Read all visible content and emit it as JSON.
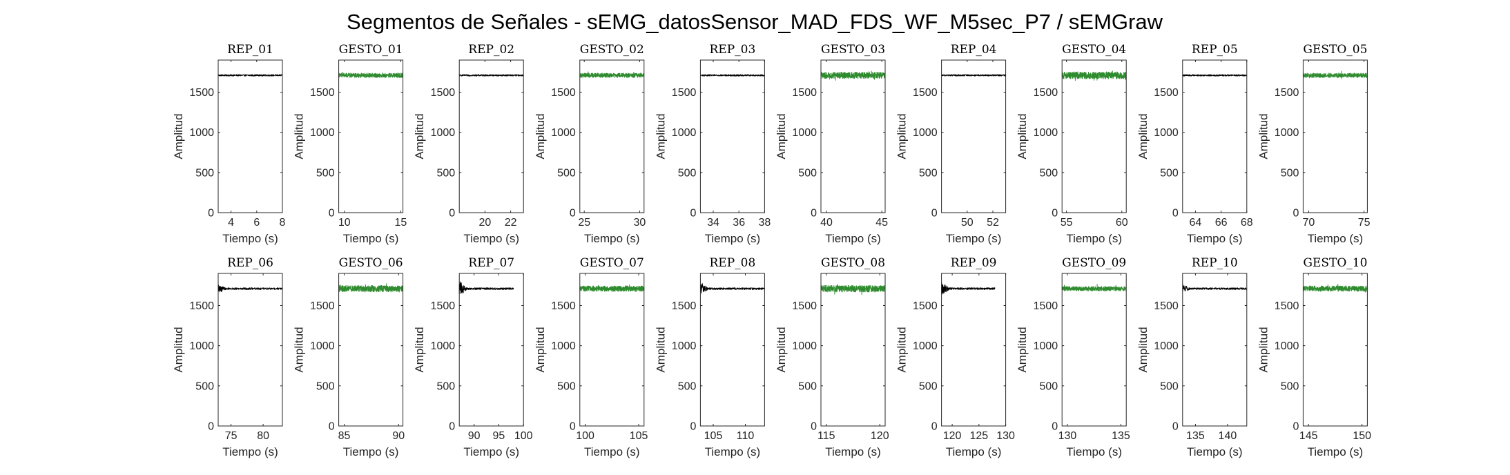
{
  "figure": {
    "title": "Segmentos de Señales - sEMG_datosSensor_MAD_FDS_WF_M5sec_P7 / sEMGraw",
    "colors": {
      "rep": "#000000",
      "gesto": "#2e8b2e",
      "axis": "#262626"
    }
  },
  "chart_data": [
    {
      "type": "line",
      "title": "REP_01",
      "xlabel": "Tiempo (s)",
      "ylabel": "Amplitud",
      "xlim": [
        3,
        8
      ],
      "ylim": [
        0,
        1900
      ],
      "xticks": [
        4,
        6,
        8
      ],
      "yticks": [
        0,
        500,
        1000,
        1500
      ],
      "series": [
        {
          "kind": "rep",
          "x_range": [
            3,
            8
          ],
          "level": 1710,
          "noise": 10,
          "burst_amp": 0,
          "burst_dur": 0
        }
      ]
    },
    {
      "type": "line",
      "title": "GESTO_01",
      "xlabel": "Tiempo (s)",
      "ylabel": "Amplitud",
      "xlim": [
        9.5,
        15.2
      ],
      "ylim": [
        0,
        1900
      ],
      "xticks": [
        10,
        15
      ],
      "yticks": [
        0,
        500,
        1000,
        1500
      ],
      "series": [
        {
          "kind": "gesto",
          "x_range": [
            9.5,
            15.2
          ],
          "level": 1710,
          "noise": 28,
          "burst_amp": 0,
          "burst_dur": 0
        }
      ]
    },
    {
      "type": "line",
      "title": "REP_02",
      "xlabel": "Tiempo (s)",
      "ylabel": "Amplitud",
      "xlim": [
        18,
        23
      ],
      "ylim": [
        0,
        1900
      ],
      "xticks": [
        20,
        22
      ],
      "yticks": [
        0,
        500,
        1000,
        1500
      ],
      "series": [
        {
          "kind": "rep",
          "x_range": [
            18,
            23
          ],
          "level": 1710,
          "noise": 10,
          "burst_amp": 0,
          "burst_dur": 0
        }
      ]
    },
    {
      "type": "line",
      "title": "GESTO_02",
      "xlabel": "Tiempo (s)",
      "ylabel": "Amplitud",
      "xlim": [
        24.6,
        30.4
      ],
      "ylim": [
        0,
        1900
      ],
      "xticks": [
        25,
        30
      ],
      "yticks": [
        0,
        500,
        1000,
        1500
      ],
      "series": [
        {
          "kind": "gesto",
          "x_range": [
            24.6,
            30.4
          ],
          "level": 1710,
          "noise": 28,
          "burst_amp": 0,
          "burst_dur": 0
        }
      ]
    },
    {
      "type": "line",
      "title": "REP_03",
      "xlabel": "Tiempo (s)",
      "ylabel": "Amplitud",
      "xlim": [
        33,
        38
      ],
      "ylim": [
        0,
        1900
      ],
      "xticks": [
        34,
        36,
        38
      ],
      "yticks": [
        0,
        500,
        1000,
        1500
      ],
      "series": [
        {
          "kind": "rep",
          "x_range": [
            33,
            38
          ],
          "level": 1710,
          "noise": 10,
          "burst_amp": 0,
          "burst_dur": 0
        }
      ]
    },
    {
      "type": "line",
      "title": "GESTO_03",
      "xlabel": "Tiempo (s)",
      "ylabel": "Amplitud",
      "xlim": [
        39.5,
        45.3
      ],
      "ylim": [
        0,
        1900
      ],
      "xticks": [
        40,
        45
      ],
      "yticks": [
        0,
        500,
        1000,
        1500
      ],
      "series": [
        {
          "kind": "gesto",
          "x_range": [
            39.5,
            45.3
          ],
          "level": 1710,
          "noise": 40,
          "burst_amp": 0,
          "burst_dur": 0
        }
      ]
    },
    {
      "type": "line",
      "title": "REP_04",
      "xlabel": "Tiempo (s)",
      "ylabel": "Amplitud",
      "xlim": [
        48,
        53
      ],
      "ylim": [
        0,
        1900
      ],
      "xticks": [
        50,
        52
      ],
      "yticks": [
        0,
        500,
        1000,
        1500
      ],
      "series": [
        {
          "kind": "rep",
          "x_range": [
            48,
            53
          ],
          "level": 1710,
          "noise": 10,
          "burst_amp": 0,
          "burst_dur": 0
        }
      ]
    },
    {
      "type": "line",
      "title": "GESTO_04",
      "xlabel": "Tiempo (s)",
      "ylabel": "Amplitud",
      "xlim": [
        54.6,
        60.4
      ],
      "ylim": [
        0,
        1900
      ],
      "xticks": [
        55,
        60
      ],
      "yticks": [
        0,
        500,
        1000,
        1500
      ],
      "series": [
        {
          "kind": "gesto",
          "x_range": [
            54.6,
            60.4
          ],
          "level": 1710,
          "noise": 45,
          "burst_amp": 0,
          "burst_dur": 0
        }
      ]
    },
    {
      "type": "line",
      "title": "REP_05",
      "xlabel": "Tiempo (s)",
      "ylabel": "Amplitud",
      "xlim": [
        63,
        68
      ],
      "ylim": [
        0,
        1900
      ],
      "xticks": [
        64,
        66,
        68
      ],
      "yticks": [
        0,
        500,
        1000,
        1500
      ],
      "series": [
        {
          "kind": "rep",
          "x_range": [
            63,
            68
          ],
          "level": 1710,
          "noise": 10,
          "burst_amp": 0,
          "burst_dur": 0
        }
      ]
    },
    {
      "type": "line",
      "title": "GESTO_05",
      "xlabel": "Tiempo (s)",
      "ylabel": "Amplitud",
      "xlim": [
        69.5,
        75.3
      ],
      "ylim": [
        0,
        1900
      ],
      "xticks": [
        70,
        75
      ],
      "yticks": [
        0,
        500,
        1000,
        1500
      ],
      "series": [
        {
          "kind": "gesto",
          "x_range": [
            69.5,
            75.3
          ],
          "level": 1710,
          "noise": 28,
          "burst_amp": 0,
          "burst_dur": 0
        }
      ]
    },
    {
      "type": "line",
      "title": "REP_06",
      "xlabel": "Tiempo (s)",
      "ylabel": "Amplitud",
      "xlim": [
        73,
        83
      ],
      "ylim": [
        0,
        1900
      ],
      "xticks": [
        75,
        80
      ],
      "yticks": [
        0,
        500,
        1000,
        1500
      ],
      "series": [
        {
          "kind": "rep",
          "x_range": [
            73,
            83
          ],
          "level": 1710,
          "noise": 12,
          "burst_amp": 45,
          "burst_dur": 1.2
        }
      ]
    },
    {
      "type": "line",
      "title": "GESTO_06",
      "xlabel": "Tiempo (s)",
      "ylabel": "Amplitud",
      "xlim": [
        84.5,
        90.4
      ],
      "ylim": [
        0,
        1900
      ],
      "xticks": [
        85,
        90
      ],
      "yticks": [
        0,
        500,
        1000,
        1500
      ],
      "series": [
        {
          "kind": "gesto",
          "x_range": [
            84.5,
            90.4
          ],
          "level": 1710,
          "noise": 40,
          "burst_amp": 0,
          "burst_dur": 0
        }
      ]
    },
    {
      "type": "line",
      "title": "REP_07",
      "xlabel": "Tiempo (s)",
      "ylabel": "Amplitud",
      "xlim": [
        87,
        100
      ],
      "ylim": [
        0,
        1900
      ],
      "xticks": [
        90,
        95,
        100
      ],
      "yticks": [
        0,
        500,
        1000,
        1500
      ],
      "series": [
        {
          "kind": "rep",
          "x_range": [
            87,
            98
          ],
          "level": 1710,
          "noise": 12,
          "burst_amp": 90,
          "burst_dur": 1.5
        }
      ]
    },
    {
      "type": "line",
      "title": "GESTO_07",
      "xlabel": "Tiempo (s)",
      "ylabel": "Amplitud",
      "xlim": [
        99.5,
        105.5
      ],
      "ylim": [
        0,
        1900
      ],
      "xticks": [
        100,
        105
      ],
      "yticks": [
        0,
        500,
        1000,
        1500
      ],
      "series": [
        {
          "kind": "gesto",
          "x_range": [
            99.5,
            105.5
          ],
          "level": 1710,
          "noise": 35,
          "burst_amp": 0,
          "burst_dur": 0
        }
      ]
    },
    {
      "type": "line",
      "title": "REP_08",
      "xlabel": "Tiempo (s)",
      "ylabel": "Amplitud",
      "xlim": [
        103,
        113
      ],
      "ylim": [
        0,
        1900
      ],
      "xticks": [
        105,
        110
      ],
      "yticks": [
        0,
        500,
        1000,
        1500
      ],
      "series": [
        {
          "kind": "rep",
          "x_range": [
            103,
            113
          ],
          "level": 1710,
          "noise": 12,
          "burst_amp": 70,
          "burst_dur": 1.2
        }
      ]
    },
    {
      "type": "line",
      "title": "GESTO_08",
      "xlabel": "Tiempo (s)",
      "ylabel": "Amplitud",
      "xlim": [
        114.5,
        120.5
      ],
      "ylim": [
        0,
        1900
      ],
      "xticks": [
        115,
        120
      ],
      "yticks": [
        0,
        500,
        1000,
        1500
      ],
      "series": [
        {
          "kind": "gesto",
          "x_range": [
            114.5,
            120.5
          ],
          "level": 1710,
          "noise": 42,
          "burst_amp": 0,
          "burst_dur": 0
        }
      ]
    },
    {
      "type": "line",
      "title": "REP_09",
      "xlabel": "Tiempo (s)",
      "ylabel": "Amplitud",
      "xlim": [
        118,
        130
      ],
      "ylim": [
        0,
        1900
      ],
      "xticks": [
        120,
        125,
        130
      ],
      "yticks": [
        0,
        500,
        1000,
        1500
      ],
      "series": [
        {
          "kind": "rep",
          "x_range": [
            118,
            128
          ],
          "level": 1710,
          "noise": 12,
          "burst_amp": 70,
          "burst_dur": 1.5
        }
      ]
    },
    {
      "type": "line",
      "title": "GESTO_09",
      "xlabel": "Tiempo (s)",
      "ylabel": "Amplitud",
      "xlim": [
        129.5,
        135.5
      ],
      "ylim": [
        0,
        1900
      ],
      "xticks": [
        130,
        135
      ],
      "yticks": [
        0,
        500,
        1000,
        1500
      ],
      "series": [
        {
          "kind": "gesto",
          "x_range": [
            129.5,
            135.5
          ],
          "level": 1710,
          "noise": 28,
          "burst_amp": 0,
          "burst_dur": 0
        }
      ]
    },
    {
      "type": "line",
      "title": "REP_10",
      "xlabel": "Tiempo (s)",
      "ylabel": "Amplitud",
      "xlim": [
        133,
        143
      ],
      "ylim": [
        0,
        1900
      ],
      "xticks": [
        135,
        140
      ],
      "yticks": [
        0,
        500,
        1000,
        1500
      ],
      "series": [
        {
          "kind": "rep",
          "x_range": [
            133,
            143
          ],
          "level": 1710,
          "noise": 12,
          "burst_amp": 40,
          "burst_dur": 1.2
        }
      ]
    },
    {
      "type": "line",
      "title": "GESTO_10",
      "xlabel": "Tiempo (s)",
      "ylabel": "Amplitud",
      "xlim": [
        144.5,
        150.5
      ],
      "ylim": [
        0,
        1900
      ],
      "xticks": [
        145,
        150
      ],
      "yticks": [
        0,
        500,
        1000,
        1500
      ],
      "series": [
        {
          "kind": "gesto",
          "x_range": [
            144.5,
            150.5
          ],
          "level": 1710,
          "noise": 35,
          "burst_amp": 0,
          "burst_dur": 0
        }
      ]
    }
  ]
}
